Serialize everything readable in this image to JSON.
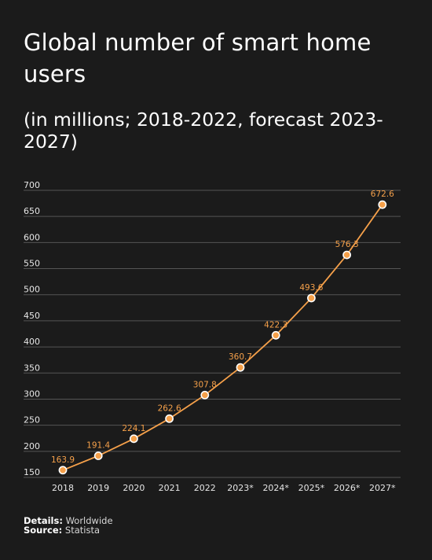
{
  "title": "Global number of smart home users",
  "subtitle": "(in millions; 2018-2022, forecast 2023-2027)",
  "footer": {
    "details_label": "Details:",
    "details_value": "Worldwide",
    "source_label": "Source:",
    "source_value": "Statista"
  },
  "colors": {
    "background": "#1b1b1b",
    "line": "#f5a04a",
    "gridline": "#555555",
    "text": "#ffffff"
  },
  "chart_data": {
    "type": "line",
    "categories": [
      "2018",
      "2019",
      "2020",
      "2021",
      "2022",
      "2023*",
      "2024*",
      "2025*",
      "2026*",
      "2027*"
    ],
    "series": [
      {
        "values": [
          163.9,
          191.4,
          224.1,
          262.6,
          307.8,
          360.7,
          422.3,
          493.6,
          576.3,
          672.6
        ]
      }
    ],
    "data_labels": [
      "163.9",
      "191.4",
      "224.1",
      "262.6",
      "307.8",
      "360.7",
      "422.3",
      "493.6",
      "576.3",
      "672.6"
    ],
    "y_ticks": [
      150,
      200,
      250,
      300,
      350,
      400,
      450,
      500,
      550,
      600,
      650,
      700
    ],
    "ylim": [
      150,
      700
    ],
    "grid": true,
    "xlabel": "",
    "ylabel": ""
  }
}
